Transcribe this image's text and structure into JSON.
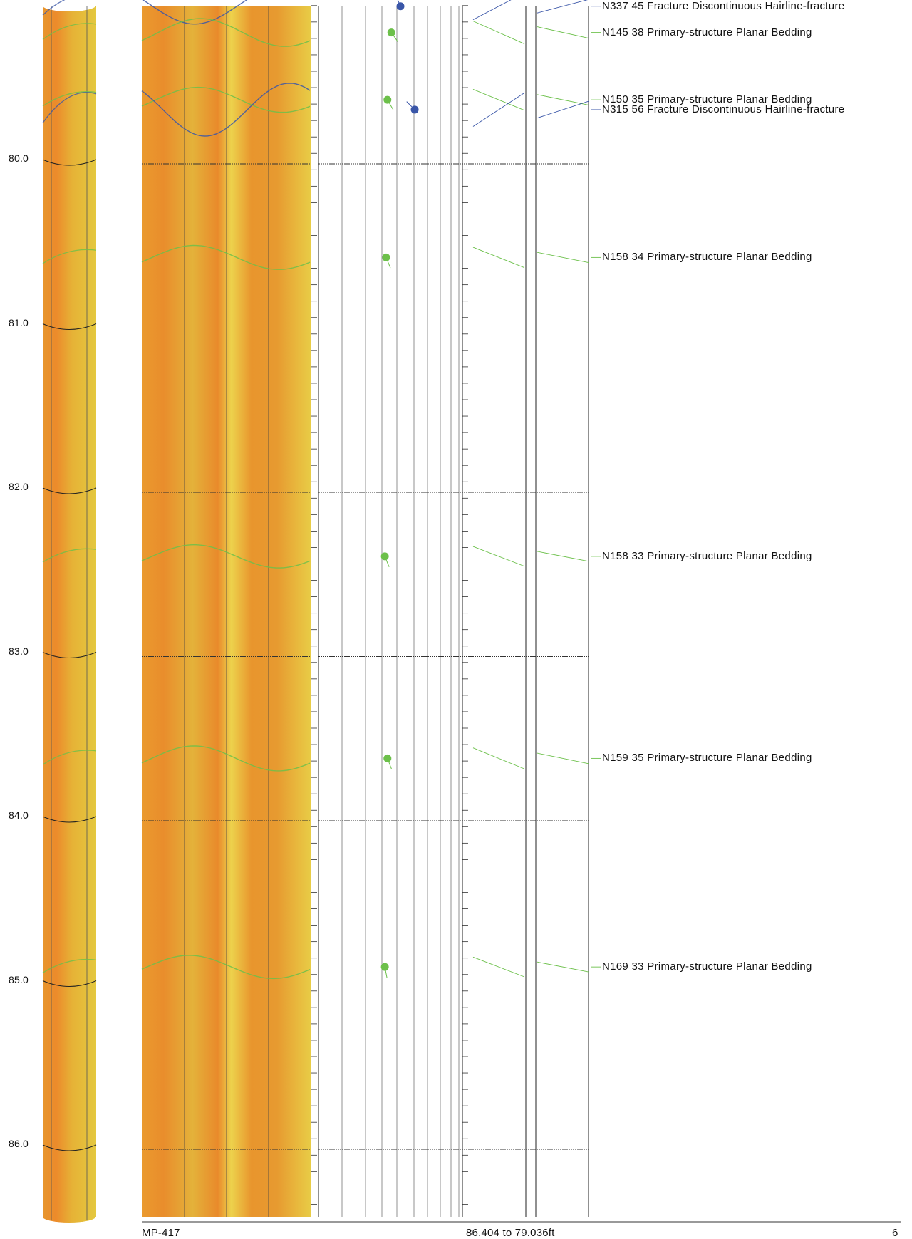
{
  "depth_axis": {
    "labels": [
      "80.0",
      "81.0",
      "82.0",
      "83.0",
      "84.0",
      "85.0",
      "86.0"
    ],
    "values": [
      80.0,
      81.0,
      82.0,
      83.0,
      84.0,
      85.0,
      86.0
    ],
    "top_depth": 79.036,
    "bottom_depth": 86.404
  },
  "features": [
    {
      "label": "N337 45 Fracture Discontinuous Hairline-fracture",
      "type": "fracture",
      "azimuth": 337,
      "dip": 45,
      "depth": 79.04
    },
    {
      "label": "N145 38 Primary-structure Planar Bedding",
      "type": "bedding",
      "azimuth": 145,
      "dip": 38,
      "depth": 79.2
    },
    {
      "label": "N150 35 Primary-structure Planar Bedding",
      "type": "bedding",
      "azimuth": 150,
      "dip": 35,
      "depth": 79.61
    },
    {
      "label": "N315 56 Fracture Discontinuous Hairline-fracture",
      "type": "fracture",
      "azimuth": 315,
      "dip": 56,
      "depth": 79.67
    },
    {
      "label": "N158 34 Primary-structure Planar Bedding",
      "type": "bedding",
      "azimuth": 158,
      "dip": 34,
      "depth": 80.57
    },
    {
      "label": "N158 33 Primary-structure Planar Bedding",
      "type": "bedding",
      "azimuth": 158,
      "dip": 33,
      "depth": 82.39
    },
    {
      "label": "N159 35 Primary-structure Planar Bedding",
      "type": "bedding",
      "azimuth": 159,
      "dip": 35,
      "depth": 83.62
    },
    {
      "label": "N169 33 Primary-structure Planar Bedding",
      "type": "bedding",
      "azimuth": 169,
      "dip": 33,
      "depth": 84.89
    }
  ],
  "footer": {
    "well": "MP-417",
    "range": "86.404 to 79.036ft",
    "page": "6"
  },
  "colors": {
    "bedding": "#6cc04a",
    "fracture": "#3a56a8",
    "core_mid": "#e8802a",
    "core_edge": "#e9d34a"
  }
}
